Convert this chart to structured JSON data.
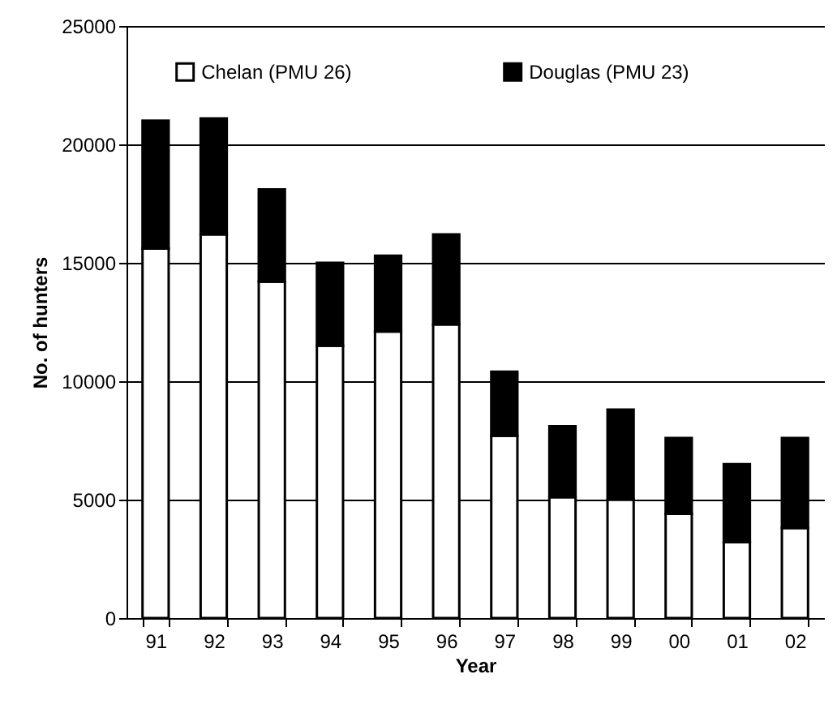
{
  "chart_data": {
    "type": "bar",
    "stacked": true,
    "xlabel": "Year",
    "ylabel": "No. of hunters",
    "categories": [
      "91",
      "92",
      "93",
      "94",
      "95",
      "96",
      "97",
      "98",
      "99",
      "00",
      "01",
      "02"
    ],
    "series": [
      {
        "name": "Chelan (PMU 26)",
        "color": "#ffffff",
        "values": [
          15600,
          16200,
          14200,
          11500,
          12100,
          12400,
          7700,
          5100,
          5000,
          4400,
          3200,
          3800
        ]
      },
      {
        "name": "Douglas (PMU 23)",
        "color": "#000000",
        "values": [
          5400,
          4900,
          3900,
          3500,
          3200,
          3800,
          2700,
          3000,
          3800,
          3200,
          3300,
          3800
        ]
      }
    ],
    "ylim": [
      0,
      25000
    ],
    "yticks": [
      0,
      5000,
      10000,
      15000,
      20000,
      25000
    ],
    "grid": "y",
    "legend": "top"
  }
}
